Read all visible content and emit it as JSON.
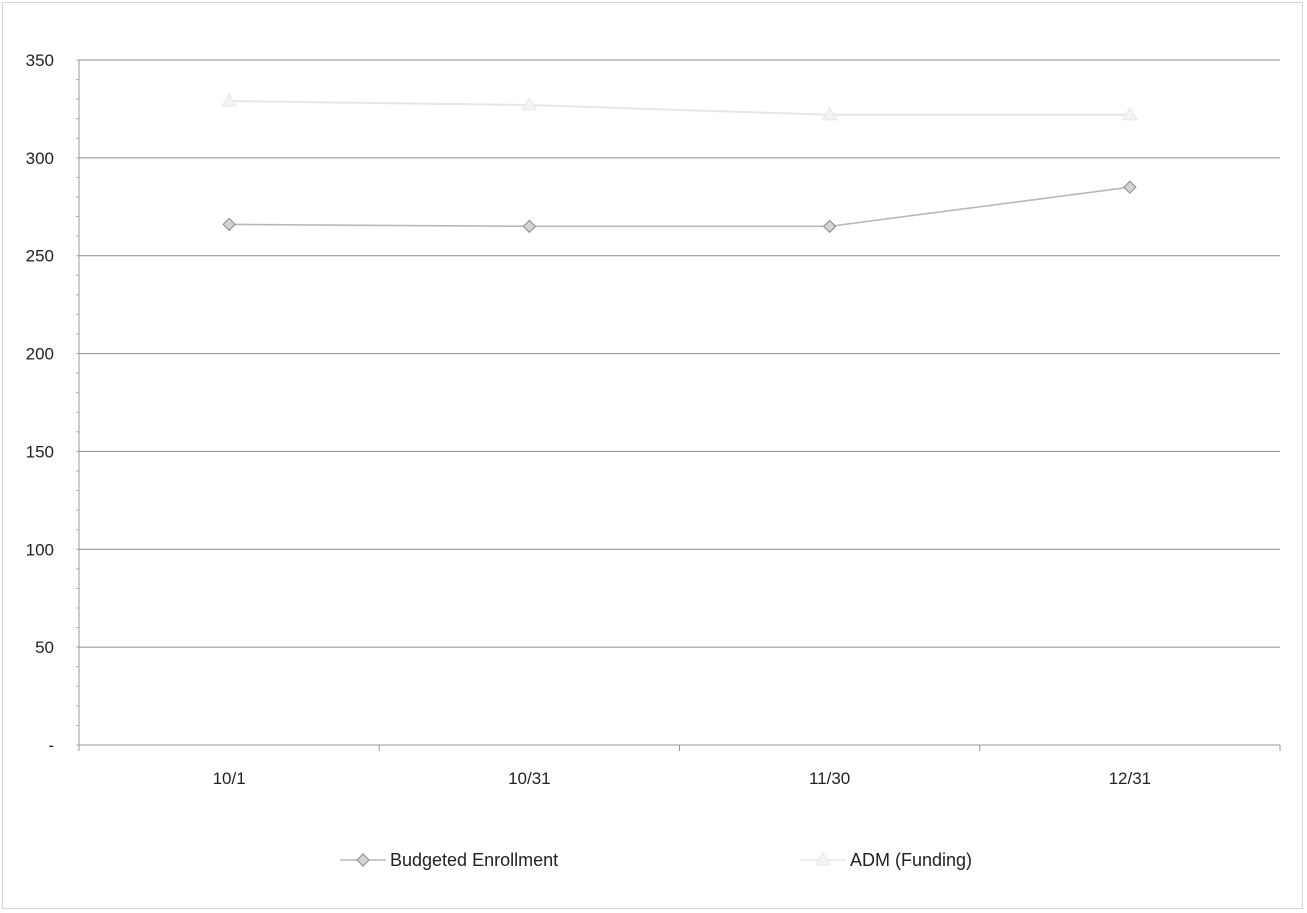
{
  "chart_data": {
    "type": "line",
    "title": "",
    "xlabel": "",
    "ylabel": "",
    "categories": [
      "10/1",
      "10/31",
      "11/30",
      "12/31"
    ],
    "ylim": [
      0,
      350
    ],
    "yticks": [
      0,
      50,
      100,
      150,
      200,
      250,
      300,
      350
    ],
    "ytick_labels": [
      "-",
      "50",
      "100",
      "150",
      "200",
      "250",
      "300",
      "350"
    ],
    "grid": true,
    "legend_position": "bottom",
    "series": [
      {
        "name": "Budgeted Enrollment",
        "values": [
          266,
          265,
          265,
          285
        ],
        "marker": "diamond",
        "color": "#b8b8b8"
      },
      {
        "name": "ADM (Funding)",
        "values": [
          329,
          327,
          322,
          322
        ],
        "marker": "triangle",
        "color": "#e6e6e6"
      }
    ]
  }
}
